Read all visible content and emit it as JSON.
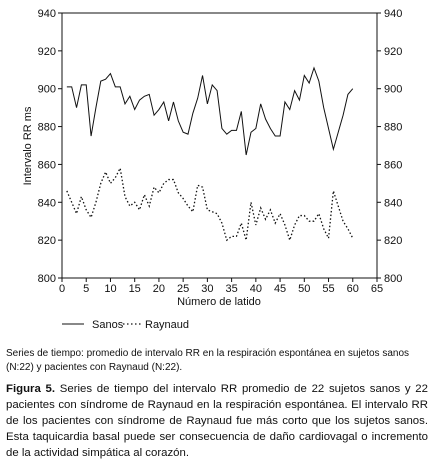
{
  "chart_data": {
    "type": "line",
    "xlabel": "Número de latido",
    "ylabel": "Intervalo RR ms",
    "xlim": [
      0,
      65
    ],
    "ylim": [
      800,
      940
    ],
    "x_ticks": [
      0,
      5,
      10,
      15,
      20,
      25,
      30,
      35,
      40,
      45,
      50,
      55,
      60,
      65
    ],
    "y_ticks": [
      800,
      820,
      840,
      860,
      880,
      900,
      920,
      940
    ],
    "grid": false,
    "right_axis": true,
    "legend_position": "bottom",
    "series": [
      {
        "name": "Sanos",
        "style": "solid",
        "x": [
          1,
          2,
          3,
          4,
          5,
          6,
          7,
          8,
          9,
          10,
          11,
          12,
          13,
          14,
          15,
          16,
          17,
          18,
          19,
          20,
          21,
          22,
          23,
          24,
          25,
          26,
          27,
          28,
          29,
          30,
          31,
          32,
          33,
          34,
          35,
          36,
          37,
          38,
          39,
          40,
          41,
          42,
          43,
          44,
          45,
          46,
          47,
          48,
          49,
          50,
          51,
          52,
          53,
          54,
          55,
          56,
          57,
          58,
          59,
          60
        ],
        "values": [
          901,
          901,
          890,
          902,
          902,
          875,
          890,
          904,
          905,
          908,
          901,
          901,
          892,
          896,
          889,
          894,
          896,
          897,
          886,
          889,
          893,
          883,
          893,
          883,
          877,
          876,
          887,
          895,
          907,
          892,
          902,
          899,
          879,
          876,
          878,
          878,
          888,
          865,
          877,
          879,
          892,
          884,
          879,
          875,
          875,
          893,
          889,
          899,
          894,
          907,
          903,
          911,
          904,
          890,
          879,
          868,
          877,
          886,
          897,
          900
        ]
      },
      {
        "name": "Raynaud",
        "style": "dotted",
        "x": [
          1,
          2,
          3,
          4,
          5,
          6,
          7,
          8,
          9,
          10,
          11,
          12,
          13,
          14,
          15,
          16,
          17,
          18,
          19,
          20,
          21,
          22,
          23,
          24,
          25,
          26,
          27,
          28,
          29,
          30,
          31,
          32,
          33,
          34,
          35,
          36,
          37,
          38,
          39,
          40,
          41,
          42,
          43,
          44,
          45,
          46,
          47,
          48,
          49,
          50,
          51,
          52,
          53,
          54,
          55,
          56,
          57,
          58,
          59,
          60
        ],
        "values": [
          846,
          840,
          834,
          843,
          836,
          832,
          840,
          850,
          856,
          850,
          853,
          858,
          843,
          838,
          840,
          836,
          844,
          838,
          848,
          845,
          850,
          852,
          852,
          845,
          842,
          838,
          835,
          849,
          848,
          836,
          835,
          834,
          829,
          820,
          822,
          822,
          829,
          820,
          840,
          828,
          837,
          831,
          836,
          829,
          834,
          828,
          820,
          828,
          833,
          833,
          830,
          830,
          834,
          826,
          821,
          846,
          838,
          830,
          826,
          821
        ]
      }
    ]
  },
  "note": {
    "text": "Series de tiempo: promedio de intervalo RR en la respiración espontánea en sujetos sanos (N:22) y pacientes con Raynaud (N:22)."
  },
  "caption": {
    "label": "Figura 5.",
    "text": "Series de tiempo del intervalo RR promedio de 22 sujetos sanos y 22 pacientes con síndrome de Raynaud en la respiración espontánea. El intervalo RR de los pacientes con síndrome de Raynaud fue más corto que los sujetos sanos. Esta taquicardia basal puede ser consecuencia de daño cardiovagal o incremento de la actividad simpática al corazón."
  }
}
